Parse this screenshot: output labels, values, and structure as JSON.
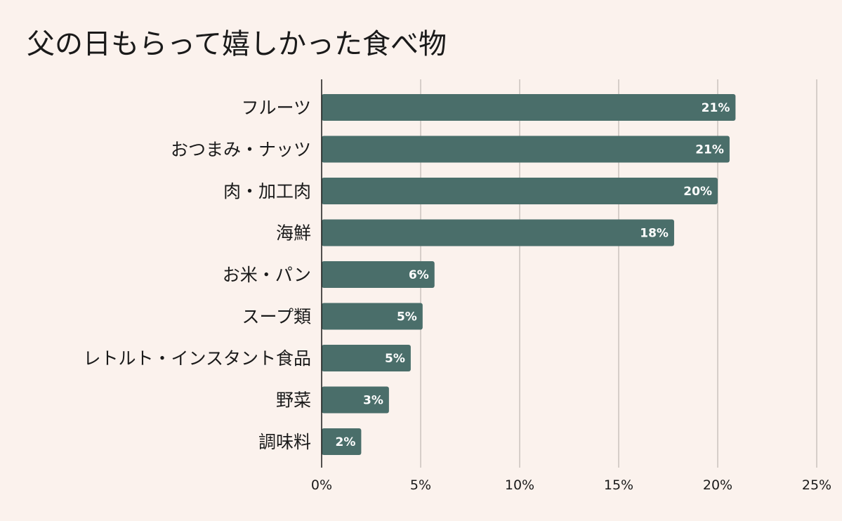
{
  "chart_data": {
    "type": "bar",
    "orientation": "horizontal",
    "title": "父の日もらって嬉しかった食べ物",
    "categories": [
      "フルーツ",
      "おつまみ・ナッツ",
      "肉・加工肉",
      "海鮮",
      "お米・パン",
      "スープ類",
      "レトルト・インスタント食品",
      "野菜",
      "調味料"
    ],
    "values": [
      20.9,
      20.6,
      20.0,
      17.8,
      5.7,
      5.1,
      4.5,
      3.4,
      2.0
    ],
    "data_labels": [
      "21%",
      "21%",
      "20%",
      "18%",
      "6%",
      "5%",
      "5%",
      "3%",
      "2%"
    ],
    "xlim": [
      0,
      25
    ],
    "x_ticks": [
      0,
      5,
      10,
      15,
      20,
      25
    ],
    "x_tick_labels": [
      "0%",
      "5%",
      "10%",
      "15%",
      "20%",
      "25%"
    ],
    "grid": "vertical",
    "legend": "none",
    "colors": {
      "bar": "#4a6e6a",
      "background": "#fbf2ed",
      "grid": "#c9c2bd",
      "axis": "#1a1a1a"
    }
  }
}
